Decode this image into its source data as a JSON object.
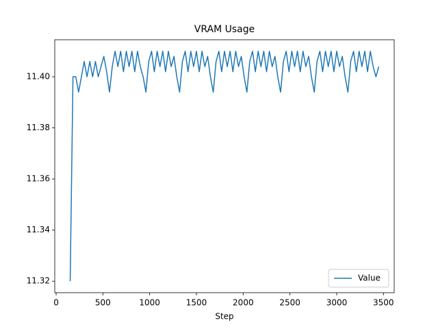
{
  "chart_data": {
    "type": "line",
    "title": "VRAM Usage",
    "x_label": "Step",
    "x": [
      150,
      180,
      210,
      240,
      270,
      300,
      330,
      360,
      390,
      420,
      450,
      480,
      510,
      540,
      570,
      600,
      630,
      660,
      690,
      720,
      750,
      780,
      810,
      840,
      870,
      900,
      930,
      960,
      990,
      1020,
      1050,
      1080,
      1110,
      1140,
      1170,
      1200,
      1230,
      1260,
      1290,
      1320,
      1350,
      1380,
      1410,
      1440,
      1470,
      1500,
      1530,
      1560,
      1590,
      1620,
      1650,
      1680,
      1710,
      1740,
      1770,
      1800,
      1830,
      1860,
      1890,
      1920,
      1950,
      1980,
      2010,
      2040,
      2070,
      2100,
      2130,
      2160,
      2190,
      2220,
      2250,
      2280,
      2310,
      2340,
      2370,
      2400,
      2430,
      2460,
      2490,
      2520,
      2550,
      2580,
      2610,
      2640,
      2670,
      2700,
      2730,
      2760,
      2790,
      2820,
      2850,
      2880,
      2910,
      2940,
      2970,
      3000,
      3030,
      3060,
      3090,
      3120,
      3150,
      3180,
      3210,
      3240,
      3270,
      3300,
      3330,
      3360,
      3390,
      3420,
      3450
    ],
    "series": [
      {
        "name": "Value",
        "color": "#1f77b4",
        "values": [
          11.32,
          11.4,
          11.4,
          11.394,
          11.4,
          11.406,
          11.4,
          11.406,
          11.4,
          11.406,
          11.4,
          11.404,
          11.408,
          11.402,
          11.394,
          11.404,
          11.41,
          11.404,
          11.41,
          11.402,
          11.41,
          11.404,
          11.41,
          11.402,
          11.41,
          11.404,
          11.4,
          11.394,
          11.406,
          11.41,
          11.402,
          11.41,
          11.404,
          11.41,
          11.402,
          11.41,
          11.404,
          11.408,
          11.4,
          11.394,
          11.406,
          11.41,
          11.402,
          11.41,
          11.404,
          11.41,
          11.402,
          11.41,
          11.404,
          11.408,
          11.4,
          11.394,
          11.406,
          11.41,
          11.402,
          11.41,
          11.404,
          11.41,
          11.402,
          11.41,
          11.404,
          11.408,
          11.4,
          11.394,
          11.406,
          11.41,
          11.402,
          11.41,
          11.404,
          11.41,
          11.402,
          11.41,
          11.404,
          11.408,
          11.4,
          11.394,
          11.406,
          11.41,
          11.402,
          11.41,
          11.404,
          11.41,
          11.402,
          11.41,
          11.404,
          11.408,
          11.4,
          11.394,
          11.406,
          11.41,
          11.402,
          11.41,
          11.404,
          11.41,
          11.402,
          11.41,
          11.404,
          11.408,
          11.4,
          11.394,
          11.406,
          11.41,
          11.402,
          11.41,
          11.404,
          11.41,
          11.402,
          11.41,
          11.404,
          11.4,
          11.404
        ]
      }
    ],
    "xlim": [
      -15,
      3615
    ],
    "xticks": [
      0,
      500,
      1000,
      1500,
      2000,
      2500,
      3000,
      3500
    ],
    "ylim": [
      11.3155,
      11.4145
    ],
    "yticks": [
      11.32,
      11.34,
      11.36,
      11.38,
      {
        "value": 11.4,
        "label": "11.40"
      }
    ],
    "legend": "lower right",
    "grid": false
  }
}
